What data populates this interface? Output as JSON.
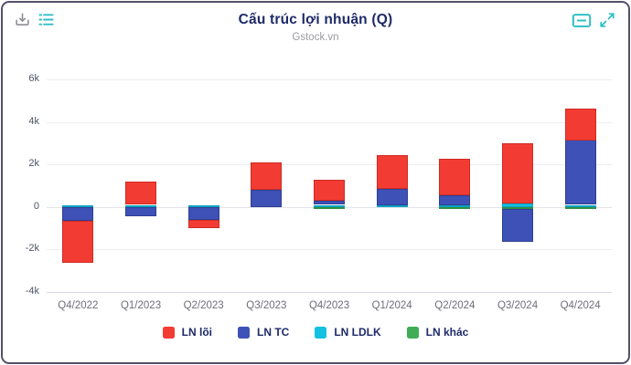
{
  "card": {
    "title": "Cấu trúc lợi nhuận (Q)",
    "subtitle": "Gstock.vn",
    "toolbar_icons": [
      "download-icon",
      "list-icon",
      "zoom-out-icon",
      "fullscreen-icon"
    ]
  },
  "colors": {
    "accent_teal": "#2fc0c6",
    "title_navy": "#1e2a68",
    "subtitle_gray": "#9a9aa2",
    "card_border": "#564f69",
    "series_red": "#f23c33",
    "series_blue": "#3d51b6",
    "series_cyan": "#12c2e0",
    "series_green": "#3fad55"
  },
  "chart_data": {
    "type": "bar",
    "stacked": true,
    "title": "Cấu trúc lợi nhuận (Q)",
    "subtitle": "Gstock.vn",
    "categories": [
      "Q4/2022",
      "Q1/2023",
      "Q2/2023",
      "Q3/2023",
      "Q4/2023",
      "Q1/2024",
      "Q2/2024",
      "Q3/2024",
      "Q4/2024"
    ],
    "series": [
      {
        "name": "LN lõi",
        "color": "#f23c33",
        "border": "#cf2b23",
        "values": [
          -2000,
          1100,
          -400,
          1300,
          1000,
          1600,
          1700,
          2850,
          1500
        ]
      },
      {
        "name": "LN TC",
        "color": "#3d51b6",
        "border": "#2f3f93",
        "values": [
          -650,
          -450,
          -600,
          800,
          200,
          750,
          450,
          -1550,
          3050
        ]
      },
      {
        "name": "LN LDLK",
        "color": "#12c2e0",
        "border": "#0aa3c2",
        "values": [
          100,
          100,
          100,
          0,
          100,
          100,
          100,
          150,
          100
        ]
      },
      {
        "name": "LN khác",
        "color": "#3fad55",
        "border": "#2f8f44",
        "values": [
          0,
          0,
          0,
          0,
          -100,
          0,
          -100,
          -100,
          -100
        ]
      }
    ],
    "stack_order_outward": [
      "LN khác",
      "LN LDLK",
      "LN TC",
      "LN lõi"
    ],
    "ylim": [
      -4000,
      6000
    ],
    "yticks": [
      {
        "value": -4000,
        "label": "-4k"
      },
      {
        "value": -2000,
        "label": "-2k"
      },
      {
        "value": 0,
        "label": "0"
      },
      {
        "value": 2000,
        "label": "2k"
      },
      {
        "value": 4000,
        "label": "4k"
      },
      {
        "value": 6000,
        "label": "6k"
      }
    ],
    "grid": true,
    "legend_position": "bottom"
  }
}
